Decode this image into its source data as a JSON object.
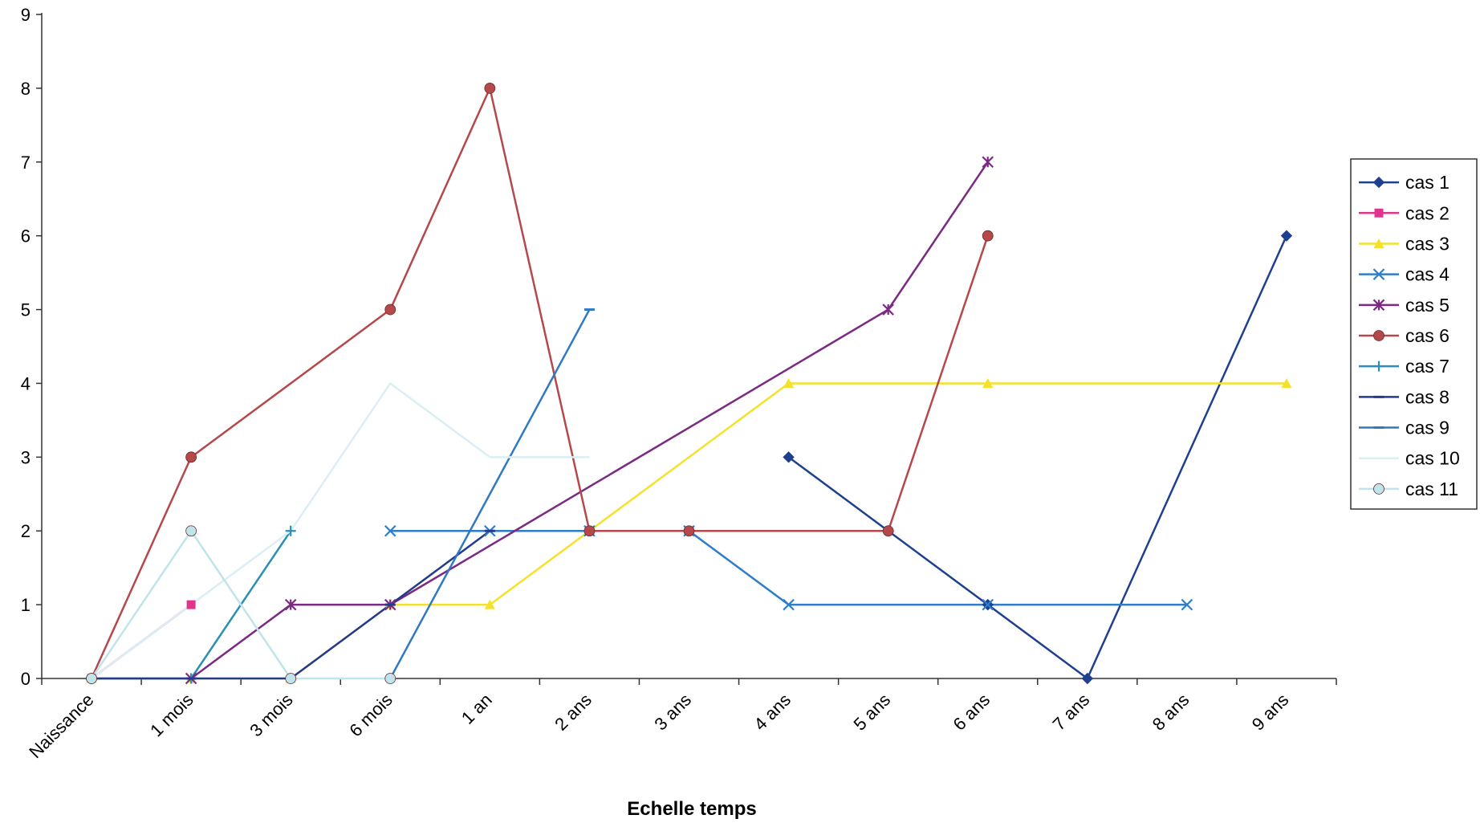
{
  "chart_data": {
    "type": "line",
    "title": "",
    "xlabel": "Echelle temps",
    "ylabel": "",
    "ylim": [
      0,
      9
    ],
    "yticks": [
      "0",
      "1",
      "2",
      "3",
      "4",
      "5",
      "6",
      "7",
      "8",
      "9"
    ],
    "categories": [
      "Naissance",
      "1 mois",
      "3 mois",
      "6 mois",
      "1 an",
      "2 ans",
      "3 ans",
      "4 ans",
      "5 ans",
      "6 ans",
      "7 ans",
      "8 ans",
      "9 ans"
    ],
    "grid": false,
    "legend_position": "right",
    "series": [
      {
        "name": "cas  1",
        "color": "#1f3f8f",
        "marker": "diamond",
        "values": [
          null,
          null,
          null,
          null,
          null,
          null,
          null,
          3,
          2,
          1,
          0,
          null,
          6
        ]
      },
      {
        "name": "cas 2",
        "color": "#e0358f",
        "marker": "square",
        "values": [
          0,
          1,
          null,
          null,
          null,
          null,
          null,
          null,
          null,
          null,
          null,
          null,
          null
        ]
      },
      {
        "name": "cas 3",
        "color": "#f5e12a",
        "marker": "triangle",
        "values": [
          0,
          0,
          0,
          1,
          1,
          2,
          null,
          4,
          null,
          4,
          null,
          null,
          4
        ]
      },
      {
        "name": "cas 4",
        "color": "#2e7dc9",
        "marker": "x",
        "values": [
          null,
          null,
          null,
          2,
          2,
          2,
          2,
          1,
          null,
          1,
          null,
          1,
          null
        ]
      },
      {
        "name": "cas 5",
        "color": "#7b2a83",
        "marker": "star",
        "values": [
          null,
          0,
          1,
          1,
          null,
          null,
          null,
          null,
          5,
          7,
          null,
          null,
          null
        ]
      },
      {
        "name": "cas 6",
        "color": "#b5484a",
        "marker": "circle",
        "values": [
          0,
          3,
          null,
          5,
          8,
          2,
          2,
          null,
          2,
          6,
          null,
          null,
          null
        ]
      },
      {
        "name": "cas 7",
        "color": "#2a8fb5",
        "marker": "plus",
        "values": [
          0,
          0,
          2,
          null,
          null,
          null,
          null,
          null,
          null,
          null,
          null,
          null,
          null
        ]
      },
      {
        "name": "cas 8",
        "color": "#243a8c",
        "marker": "dash",
        "values": [
          0,
          0,
          0,
          1,
          2,
          null,
          null,
          null,
          null,
          null,
          null,
          null,
          null
        ]
      },
      {
        "name": "cas 9",
        "color": "#2f78c4",
        "marker": "dash",
        "values": [
          null,
          null,
          null,
          0,
          null,
          5,
          null,
          null,
          null,
          null,
          null,
          null,
          null
        ]
      },
      {
        "name": "cas 10",
        "color": "#d9eff4",
        "marker": "none",
        "values": [
          0,
          1,
          2,
          4,
          3,
          3,
          null,
          null,
          null,
          null,
          null,
          null,
          null
        ]
      },
      {
        "name": "cas 11",
        "color": "#bfe4ec",
        "marker": "circle",
        "values": [
          0,
          2,
          0,
          0,
          null,
          null,
          null,
          null,
          null,
          null,
          null,
          null,
          null
        ]
      }
    ]
  }
}
